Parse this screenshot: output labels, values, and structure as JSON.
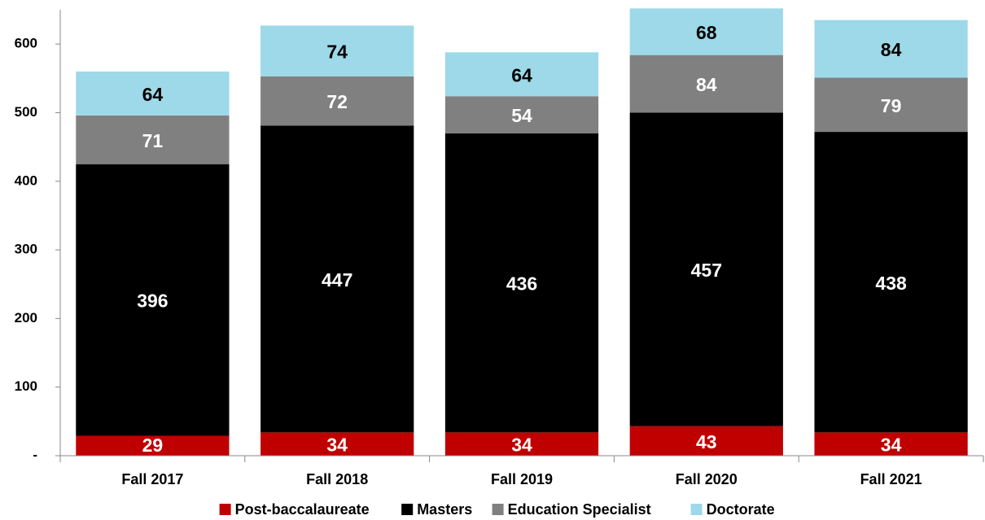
{
  "chart_data": {
    "type": "stacked_bar",
    "categories": [
      "Fall 2017",
      "Fall 2018",
      "Fall 2019",
      "Fall 2020",
      "Fall 2021"
    ],
    "series": [
      {
        "name": "Post-baccalaureate",
        "color": "#c00000",
        "values": [
          29,
          34,
          34,
          43,
          34
        ]
      },
      {
        "name": "Masters",
        "color": "#000000",
        "values": [
          396,
          447,
          436,
          457,
          438
        ]
      },
      {
        "name": "Education Specialist",
        "color": "#808080",
        "values": [
          71,
          72,
          54,
          84,
          79
        ]
      },
      {
        "name": "Doctorate",
        "color": "#9dd9e8",
        "values": [
          64,
          74,
          64,
          68,
          84
        ]
      }
    ],
    "ylim": [
      0,
      650
    ],
    "yticks": [
      {
        "value": 0,
        "label": "-"
      },
      100,
      200,
      300,
      400,
      500,
      600
    ],
    "legend": "bottom"
  }
}
